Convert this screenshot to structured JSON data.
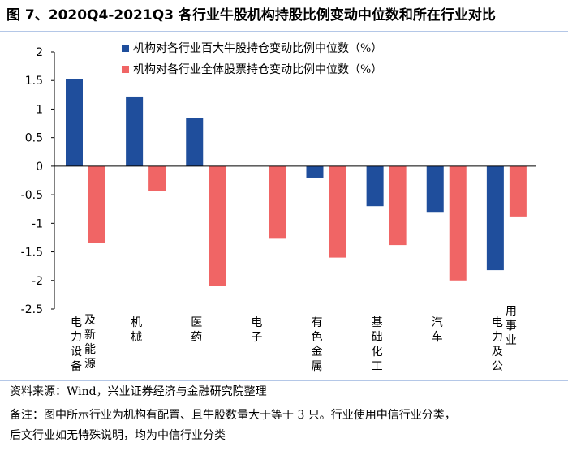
{
  "title": "图 7、2020Q4-2021Q3 各行业牛股机构持股比例变动中位数和所在行业对比",
  "source": "资料来源：Wind，兴业证券经济与金融研究院整理",
  "note_line1": "备注：图中所示行业为机构有配置、且牛股数量大于等于 3 只。行业使用中信行业分类，",
  "note_line2": "后文行业如无特殊说明，均为中信行业分类",
  "colors": {
    "series1": "#1f4e9c",
    "series2": "#f06565"
  },
  "chart_data": {
    "type": "bar",
    "categories": [
      "电力设备及新能源",
      "机械",
      "医药",
      "电子",
      "有色金属",
      "基础化工",
      "汽车",
      "电力及公用事业"
    ],
    "category_label_columns": [
      [
        "电力设备",
        "及新能源"
      ],
      [
        "机械"
      ],
      [
        "医药"
      ],
      [
        "电子"
      ],
      [
        "有色金属"
      ],
      [
        "基础化工"
      ],
      [
        "汽车"
      ],
      [
        "电力及公",
        "用事业"
      ]
    ],
    "series": [
      {
        "name": "机构对各行业百大牛股持仓变动比例中位数（%）",
        "values": [
          1.52,
          1.22,
          0.85,
          0.0,
          -0.2,
          -0.7,
          -0.8,
          -1.82
        ]
      },
      {
        "name": "机构对各行业全体股票持仓变动比例中位数（%）",
        "values": [
          -1.35,
          -0.43,
          -2.1,
          -1.27,
          -1.6,
          -1.38,
          -2.0,
          -0.88
        ]
      }
    ],
    "ylim": [
      -2.5,
      2
    ],
    "yticks": [
      "2",
      "1.5",
      "1",
      "0.5",
      "0",
      "-0.5",
      "-1",
      "-1.5",
      "-2",
      "-2.5"
    ],
    "xlabel": "",
    "ylabel": "",
    "legend_position": "top"
  }
}
